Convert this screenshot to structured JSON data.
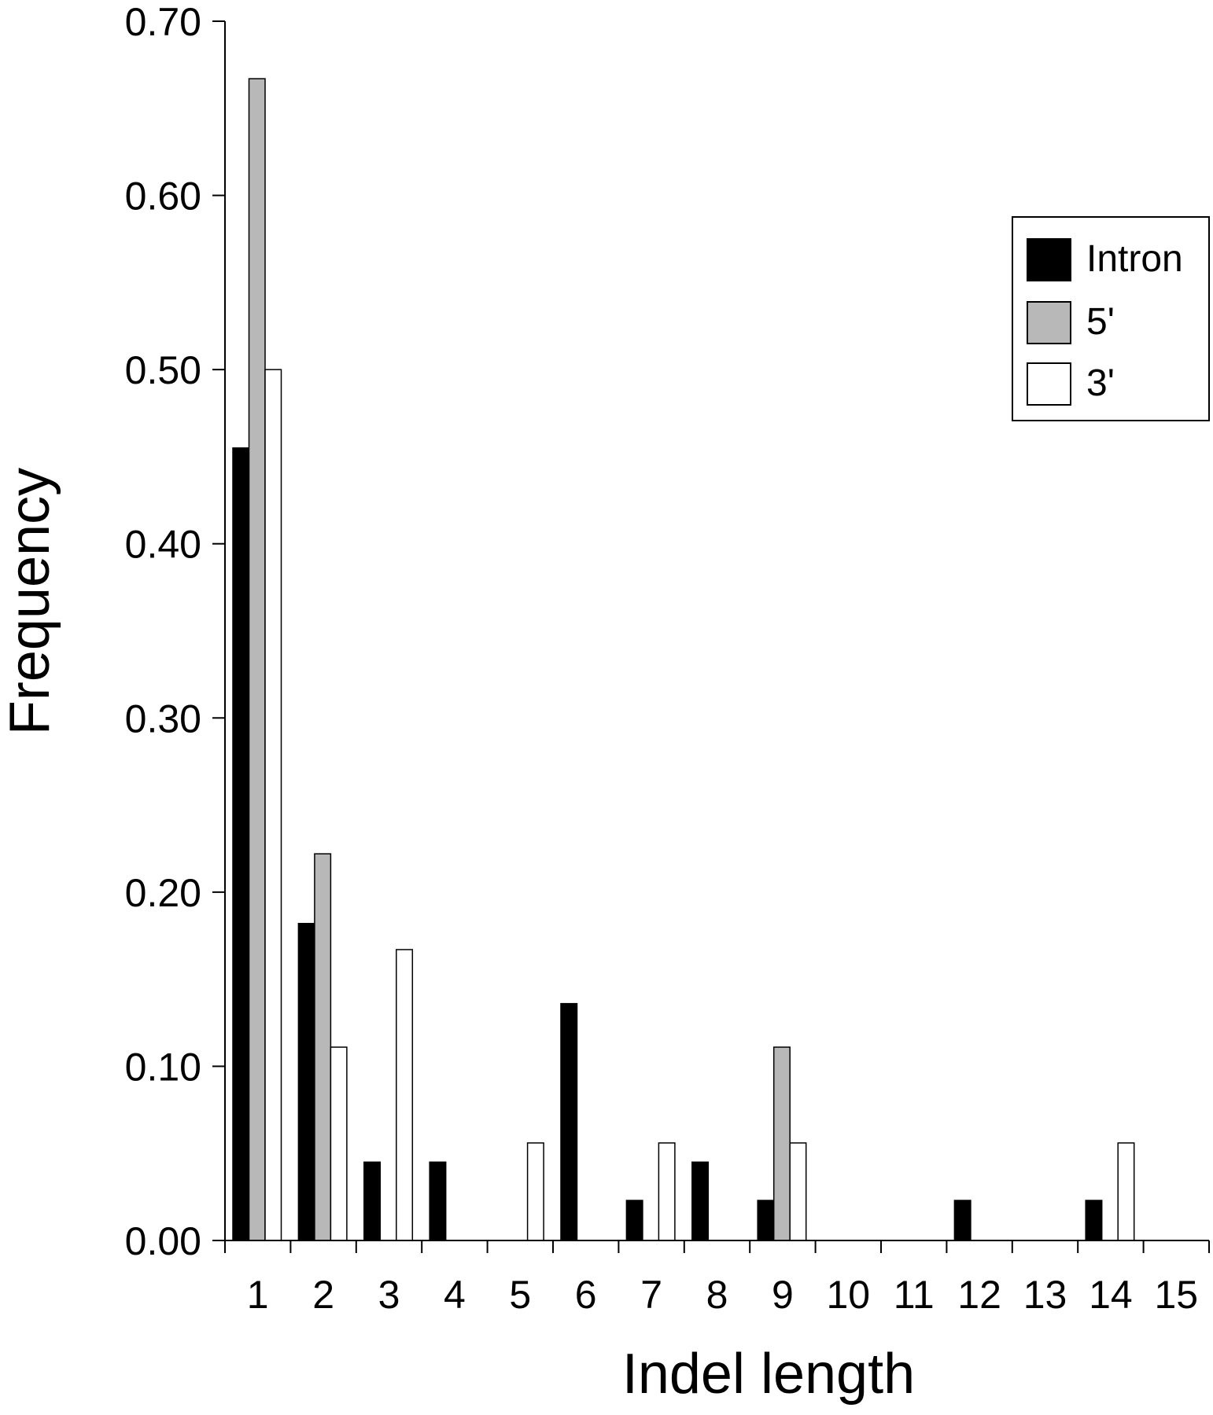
{
  "chart_data": {
    "type": "bar",
    "xlabel": "Indel length",
    "ylabel": "Frequency",
    "title": "",
    "categories": [
      "1",
      "2",
      "3",
      "4",
      "5",
      "6",
      "7",
      "8",
      "9",
      "10",
      "11",
      "12",
      "13",
      "14",
      "15"
    ],
    "ylim": [
      0,
      0.7
    ],
    "yticks": [
      "0.00",
      "0.10",
      "0.20",
      "0.30",
      "0.40",
      "0.50",
      "0.60",
      "0.70"
    ],
    "grid": false,
    "legend_position": "top-right",
    "series": [
      {
        "name": "Intron",
        "color": "#000000",
        "values": [
          0.455,
          0.182,
          0.045,
          0.045,
          0,
          0.136,
          0.023,
          0.045,
          0.023,
          0,
          0,
          0.023,
          0,
          0.023,
          0
        ]
      },
      {
        "name": "5'",
        "color": "#b8b8b8",
        "values": [
          0.667,
          0.222,
          0,
          0,
          0,
          0,
          0,
          0,
          0.111,
          0,
          0,
          0,
          0,
          0,
          0
        ]
      },
      {
        "name": "3'",
        "color": "#ffffff",
        "values": [
          0.5,
          0.111,
          0.167,
          0,
          0.056,
          0,
          0.056,
          0,
          0.056,
          0,
          0,
          0,
          0,
          0.056,
          0
        ]
      }
    ]
  }
}
